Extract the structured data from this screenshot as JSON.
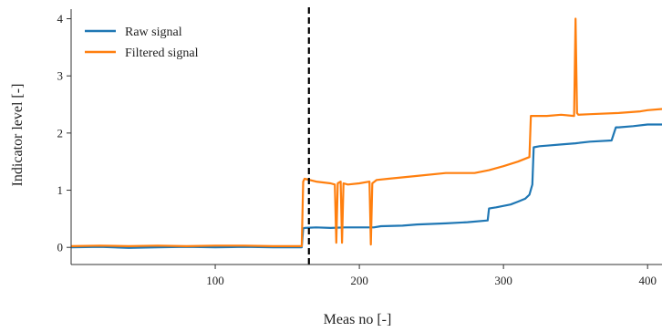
{
  "chart_data": {
    "type": "line",
    "xlabel": "Meas no [-]",
    "ylabel": "Indicator level [-]",
    "xlim": [
      0,
      410
    ],
    "ylim": [
      -0.3,
      4.2
    ],
    "xticks": [
      100,
      200,
      300,
      400
    ],
    "yticks": [
      0,
      1,
      2,
      3,
      4
    ],
    "grid": false,
    "legend_position": "top-left",
    "vline": {
      "x": 165,
      "style": "dashed",
      "color": "#000000"
    },
    "series": [
      {
        "name": "Raw signal",
        "color": "#1f77b4",
        "x": [
          0,
          20,
          40,
          60,
          80,
          100,
          120,
          140,
          160,
          161,
          162,
          170,
          180,
          190,
          200,
          210,
          215,
          230,
          240,
          260,
          275,
          289,
          290,
          295,
          305,
          310,
          315,
          318,
          320,
          321,
          325,
          330,
          340,
          350,
          360,
          375,
          378,
          380,
          390,
          400,
          410
        ],
        "values": [
          0.0,
          0.01,
          -0.01,
          0.0,
          0.01,
          0.0,
          0.01,
          0.0,
          0.0,
          0.33,
          0.34,
          0.35,
          0.34,
          0.35,
          0.35,
          0.35,
          0.37,
          0.38,
          0.4,
          0.42,
          0.44,
          0.47,
          0.68,
          0.7,
          0.75,
          0.8,
          0.85,
          0.92,
          1.1,
          1.75,
          1.77,
          1.78,
          1.8,
          1.82,
          1.85,
          1.87,
          2.1,
          2.1,
          2.12,
          2.15,
          2.15
        ]
      },
      {
        "name": "Filtered signal",
        "color": "#ff7f0e",
        "x": [
          0,
          20,
          40,
          60,
          80,
          100,
          120,
          140,
          160,
          161,
          162,
          170,
          180,
          183,
          184,
          185,
          187,
          188,
          189,
          192,
          200,
          207,
          208,
          209,
          212,
          220,
          240,
          260,
          280,
          290,
          300,
          310,
          318,
          319,
          320,
          330,
          340,
          349,
          350,
          351,
          352,
          360,
          380,
          395,
          400,
          410
        ],
        "values": [
          0.02,
          0.03,
          0.02,
          0.03,
          0.02,
          0.03,
          0.03,
          0.02,
          0.02,
          1.15,
          1.2,
          1.15,
          1.12,
          1.1,
          0.08,
          1.12,
          1.15,
          0.08,
          1.12,
          1.1,
          1.12,
          1.15,
          0.05,
          1.12,
          1.18,
          1.2,
          1.25,
          1.3,
          1.3,
          1.35,
          1.42,
          1.5,
          1.58,
          2.3,
          2.3,
          2.3,
          2.32,
          2.3,
          4.0,
          2.35,
          2.32,
          2.33,
          2.35,
          2.38,
          2.4,
          2.42
        ]
      }
    ]
  }
}
